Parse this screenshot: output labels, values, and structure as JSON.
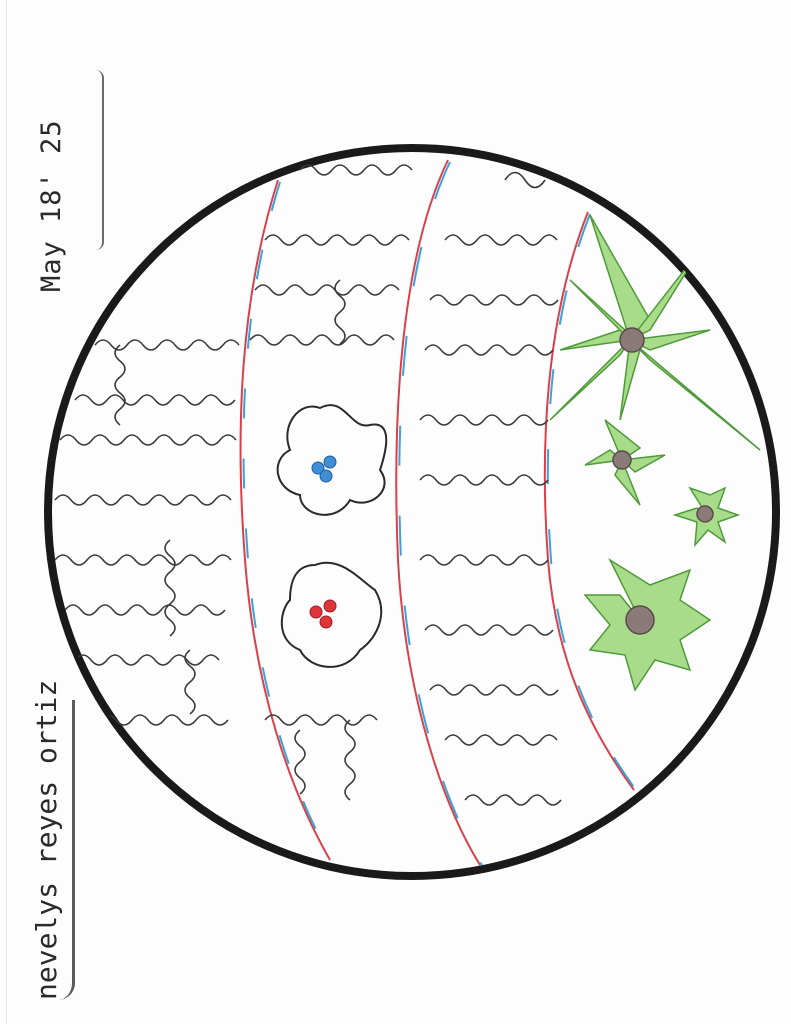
{
  "drawing": {
    "date_text": "May 18' 25",
    "name_text": "nevelys reyes ortiz",
    "colors": {
      "outline": "#1a1a1a",
      "scribble": "#3a3a3a",
      "band_red": "#d9414a",
      "band_blue": "#3fa0d8",
      "leaf_green": "#7cc45a",
      "leaf_dark": "#4f9a3a",
      "flower_center": "#8a7a78",
      "blue_center": "#3f8fd6",
      "red_center": "#e0343a"
    },
    "icons": {
      "big_star_flower": "star-flower-icon",
      "small_flowers": "small-flower-icon",
      "blossoms": "blossom-icon"
    }
  }
}
